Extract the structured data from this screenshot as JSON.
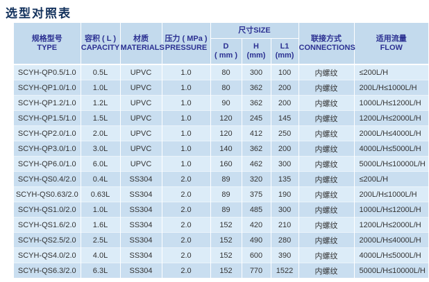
{
  "page": {
    "title": "选型对照表"
  },
  "colors": {
    "title_text": "#12315c",
    "header_bg": "#c3daed",
    "header_text": "#2c3192",
    "row_light_bg": "#dcecf8",
    "row_dark_bg": "#c9def0",
    "body_text": "#333333",
    "divider": "#ffffff"
  },
  "table": {
    "headers": {
      "type": {
        "zh": "规格型号",
        "en": "TYPE"
      },
      "capacity": {
        "zh": "容积 ( L )",
        "en": "CAPACITY"
      },
      "materials": {
        "zh": "材质",
        "en": "MATERIALS"
      },
      "pressure": {
        "zh": "压力 ( MPa )",
        "en": "PRESSURE"
      },
      "size": {
        "zh": "尺寸SIZE"
      },
      "size_d": {
        "line1": "D",
        "line2": "( mm )"
      },
      "size_h": {
        "line1": "H",
        "line2": "(mm)"
      },
      "size_l1": {
        "line1": "L1",
        "line2": "(mm)"
      },
      "connections": {
        "zh": "联接方式",
        "en": "CONNECTIONS"
      },
      "flow": {
        "zh": "适用流量",
        "en": "FLOW"
      }
    },
    "rows": [
      {
        "type": "SCYH-QP0.5/1.0",
        "capacity": "0.5L",
        "material": "UPVC",
        "pressure": "1.0",
        "d": "80",
        "h": "300",
        "l1": "100",
        "connection": "内螺纹",
        "flow": "≤200L/H"
      },
      {
        "type": "SCYH-QP1.0/1.0",
        "capacity": "1.0L",
        "material": "UPVC",
        "pressure": "1.0",
        "d": "80",
        "h": "362",
        "l1": "200",
        "connection": "内螺纹",
        "flow": "200L/H≤1000L/H"
      },
      {
        "type": "SCYH-QP1.2/1.0",
        "capacity": "1.2L",
        "material": "UPVC",
        "pressure": "1.0",
        "d": "90",
        "h": "362",
        "l1": "200",
        "connection": "内螺纹",
        "flow": "1000L/H≤1200L/H"
      },
      {
        "type": "SCYH-QP1.5/1.0",
        "capacity": "1.5L",
        "material": "UPVC",
        "pressure": "1.0",
        "d": "120",
        "h": "245",
        "l1": "145",
        "connection": "内螺纹",
        "flow": "1200L/H≤2000L/H"
      },
      {
        "type": "SCYH-QP2.0/1.0",
        "capacity": "2.0L",
        "material": "UPVC",
        "pressure": "1.0",
        "d": "120",
        "h": "412",
        "l1": "250",
        "connection": "内螺纹",
        "flow": "2000L/H≤4000L/H"
      },
      {
        "type": "SCYH-QP3.0/1.0",
        "capacity": "3.0L",
        "material": "UPVC",
        "pressure": "1.0",
        "d": "140",
        "h": "362",
        "l1": "200",
        "connection": "内螺纹",
        "flow": "4000L/H≤5000L/H"
      },
      {
        "type": "SCYH-QP6.0/1.0",
        "capacity": "6.0L",
        "material": "UPVC",
        "pressure": "1.0",
        "d": "160",
        "h": "462",
        "l1": "300",
        "connection": "内螺纹",
        "flow": "5000L/H≤10000L/H"
      },
      {
        "type": "SCYH-QS0.4/2.0",
        "capacity": "0.4L",
        "material": "SS304",
        "pressure": "2.0",
        "d": "89",
        "h": "320",
        "l1": "135",
        "connection": "内螺纹",
        "flow": "≤200L/H"
      },
      {
        "type": "SCYH-QS0.63/2.0",
        "capacity": "0.63L",
        "material": "SS304",
        "pressure": "2.0",
        "d": "89",
        "h": "375",
        "l1": "190",
        "connection": "内螺纹",
        "flow": "200L/H≤1000L/H"
      },
      {
        "type": "SCYH-QS1.0/2.0",
        "capacity": "1.0L",
        "material": "SS304",
        "pressure": "2.0",
        "d": "89",
        "h": "485",
        "l1": "300",
        "connection": "内螺纹",
        "flow": "1000L/H≤1200L/H"
      },
      {
        "type": "SCYH-QS1.6/2.0",
        "capacity": "1.6L",
        "material": "SS304",
        "pressure": "2.0",
        "d": "152",
        "h": "420",
        "l1": "210",
        "connection": "内螺纹",
        "flow": "1200L/H≤2000L/H"
      },
      {
        "type": "SCYH-QS2.5/2.0",
        "capacity": "2.5L",
        "material": "SS304",
        "pressure": "2.0",
        "d": "152",
        "h": "490",
        "l1": "280",
        "connection": "内螺纹",
        "flow": "2000L/H≤4000L/H"
      },
      {
        "type": "SCYH-QS4.0/2.0",
        "capacity": "4.0L",
        "material": "SS304",
        "pressure": "2.0",
        "d": "152",
        "h": "600",
        "l1": "390",
        "connection": "内螺纹",
        "flow": "4000L/H≤5000L/H"
      },
      {
        "type": "SCYH-QS6.3/2.0",
        "capacity": "6.3L",
        "material": "SS304",
        "pressure": "2.0",
        "d": "152",
        "h": "770",
        "l1": "1522",
        "connection": "内螺纹",
        "flow": "5000L/H≤10000L/H"
      }
    ]
  },
  "chart_data": {
    "type": "table",
    "title": "选型对照表",
    "columns": [
      "规格型号 TYPE",
      "容积(L) CAPACITY",
      "材质 MATERIALS",
      "压力(MPa) PRESSURE",
      "尺寸SIZE D(mm)",
      "尺寸SIZE H(mm)",
      "尺寸SIZE L1(mm)",
      "联接方式 CONNECTIONS",
      "适用流量 FLOW"
    ],
    "rows": [
      [
        "SCYH-QP0.5/1.0",
        "0.5L",
        "UPVC",
        "1.0",
        80,
        300,
        100,
        "内螺纹",
        "≤200L/H"
      ],
      [
        "SCYH-QP1.0/1.0",
        "1.0L",
        "UPVC",
        "1.0",
        80,
        362,
        200,
        "内螺纹",
        "200L/H≤1000L/H"
      ],
      [
        "SCYH-QP1.2/1.0",
        "1.2L",
        "UPVC",
        "1.0",
        90,
        362,
        200,
        "内螺纹",
        "1000L/H≤1200L/H"
      ],
      [
        "SCYH-QP1.5/1.0",
        "1.5L",
        "UPVC",
        "1.0",
        120,
        245,
        145,
        "内螺纹",
        "1200L/H≤2000L/H"
      ],
      [
        "SCYH-QP2.0/1.0",
        "2.0L",
        "UPVC",
        "1.0",
        120,
        412,
        250,
        "内螺纹",
        "2000L/H≤4000L/H"
      ],
      [
        "SCYH-QP3.0/1.0",
        "3.0L",
        "UPVC",
        "1.0",
        140,
        362,
        200,
        "内螺纹",
        "4000L/H≤5000L/H"
      ],
      [
        "SCYH-QP6.0/1.0",
        "6.0L",
        "UPVC",
        "1.0",
        160,
        462,
        300,
        "内螺纹",
        "5000L/H≤10000L/H"
      ],
      [
        "SCYH-QS0.4/2.0",
        "0.4L",
        "SS304",
        "2.0",
        89,
        320,
        135,
        "内螺纹",
        "≤200L/H"
      ],
      [
        "SCYH-QS0.63/2.0",
        "0.63L",
        "SS304",
        "2.0",
        89,
        375,
        190,
        "内螺纹",
        "200L/H≤1000L/H"
      ],
      [
        "SCYH-QS1.0/2.0",
        "1.0L",
        "SS304",
        "2.0",
        89,
        485,
        300,
        "内螺纹",
        "1000L/H≤1200L/H"
      ],
      [
        "SCYH-QS1.6/2.0",
        "1.6L",
        "SS304",
        "2.0",
        152,
        420,
        210,
        "内螺纹",
        "1200L/H≤2000L/H"
      ],
      [
        "SCYH-QS2.5/2.0",
        "2.5L",
        "SS304",
        "2.0",
        152,
        490,
        280,
        "内螺纹",
        "2000L/H≤4000L/H"
      ],
      [
        "SCYH-QS4.0/2.0",
        "4.0L",
        "SS304",
        "2.0",
        152,
        600,
        390,
        "内螺纹",
        "4000L/H≤5000L/H"
      ],
      [
        "SCYH-QS6.3/2.0",
        "6.3L",
        "SS304",
        "2.0",
        152,
        770,
        1522,
        "内螺纹",
        "5000L/H≤10000L/H"
      ]
    ]
  }
}
